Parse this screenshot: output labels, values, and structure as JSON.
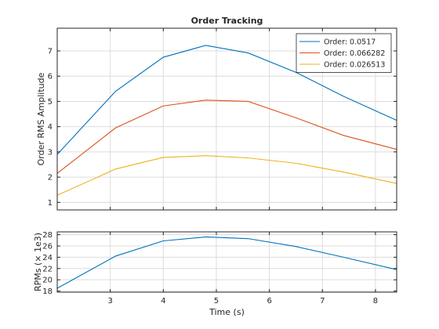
{
  "chart_data": [
    {
      "type": "line",
      "title": "Order Tracking",
      "xlabel": "",
      "ylabel": "Order RMS Amplitude",
      "xlim": [
        2,
        8.4
      ],
      "ylim": [
        0.7,
        7.9
      ],
      "xticks": [
        3,
        4,
        5,
        6,
        7,
        8
      ],
      "yticks": [
        1,
        2,
        3,
        4,
        5,
        6,
        7
      ],
      "grid": true,
      "legend": "top-right",
      "x": [
        2,
        3.1,
        4,
        4.8,
        5.6,
        6.5,
        7.4,
        8.4
      ],
      "series": [
        {
          "name": "Order:   0.0517",
          "color": "#0072BD",
          "values": [
            2.9,
            5.4,
            6.75,
            7.22,
            6.92,
            6.15,
            5.2,
            4.25
          ]
        },
        {
          "name": "Order: 0.066282",
          "color": "#D95319",
          "values": [
            2.15,
            3.95,
            4.82,
            5.05,
            5.0,
            4.35,
            3.65,
            3.1
          ]
        },
        {
          "name": "Order: 0.026513",
          "color": "#EDB120",
          "values": [
            1.28,
            2.32,
            2.78,
            2.85,
            2.76,
            2.55,
            2.2,
            1.75
          ]
        }
      ]
    },
    {
      "type": "line",
      "title": "",
      "xlabel": "Time (s)",
      "ylabel": "RPMs (× 1e3)",
      "xlim": [
        2,
        8.4
      ],
      "ylim": [
        17.8,
        28.5
      ],
      "xticks": [
        3,
        4,
        5,
        6,
        7,
        8
      ],
      "yticks": [
        18,
        20,
        22,
        24,
        26,
        28
      ],
      "grid": true,
      "x": [
        2,
        3.1,
        4,
        4.8,
        5.6,
        6.5,
        7.4,
        8.4
      ],
      "series": [
        {
          "color": "#0072BD",
          "values": [
            18.5,
            24.2,
            26.9,
            27.6,
            27.3,
            25.9,
            24.0,
            21.8
          ]
        }
      ]
    }
  ]
}
